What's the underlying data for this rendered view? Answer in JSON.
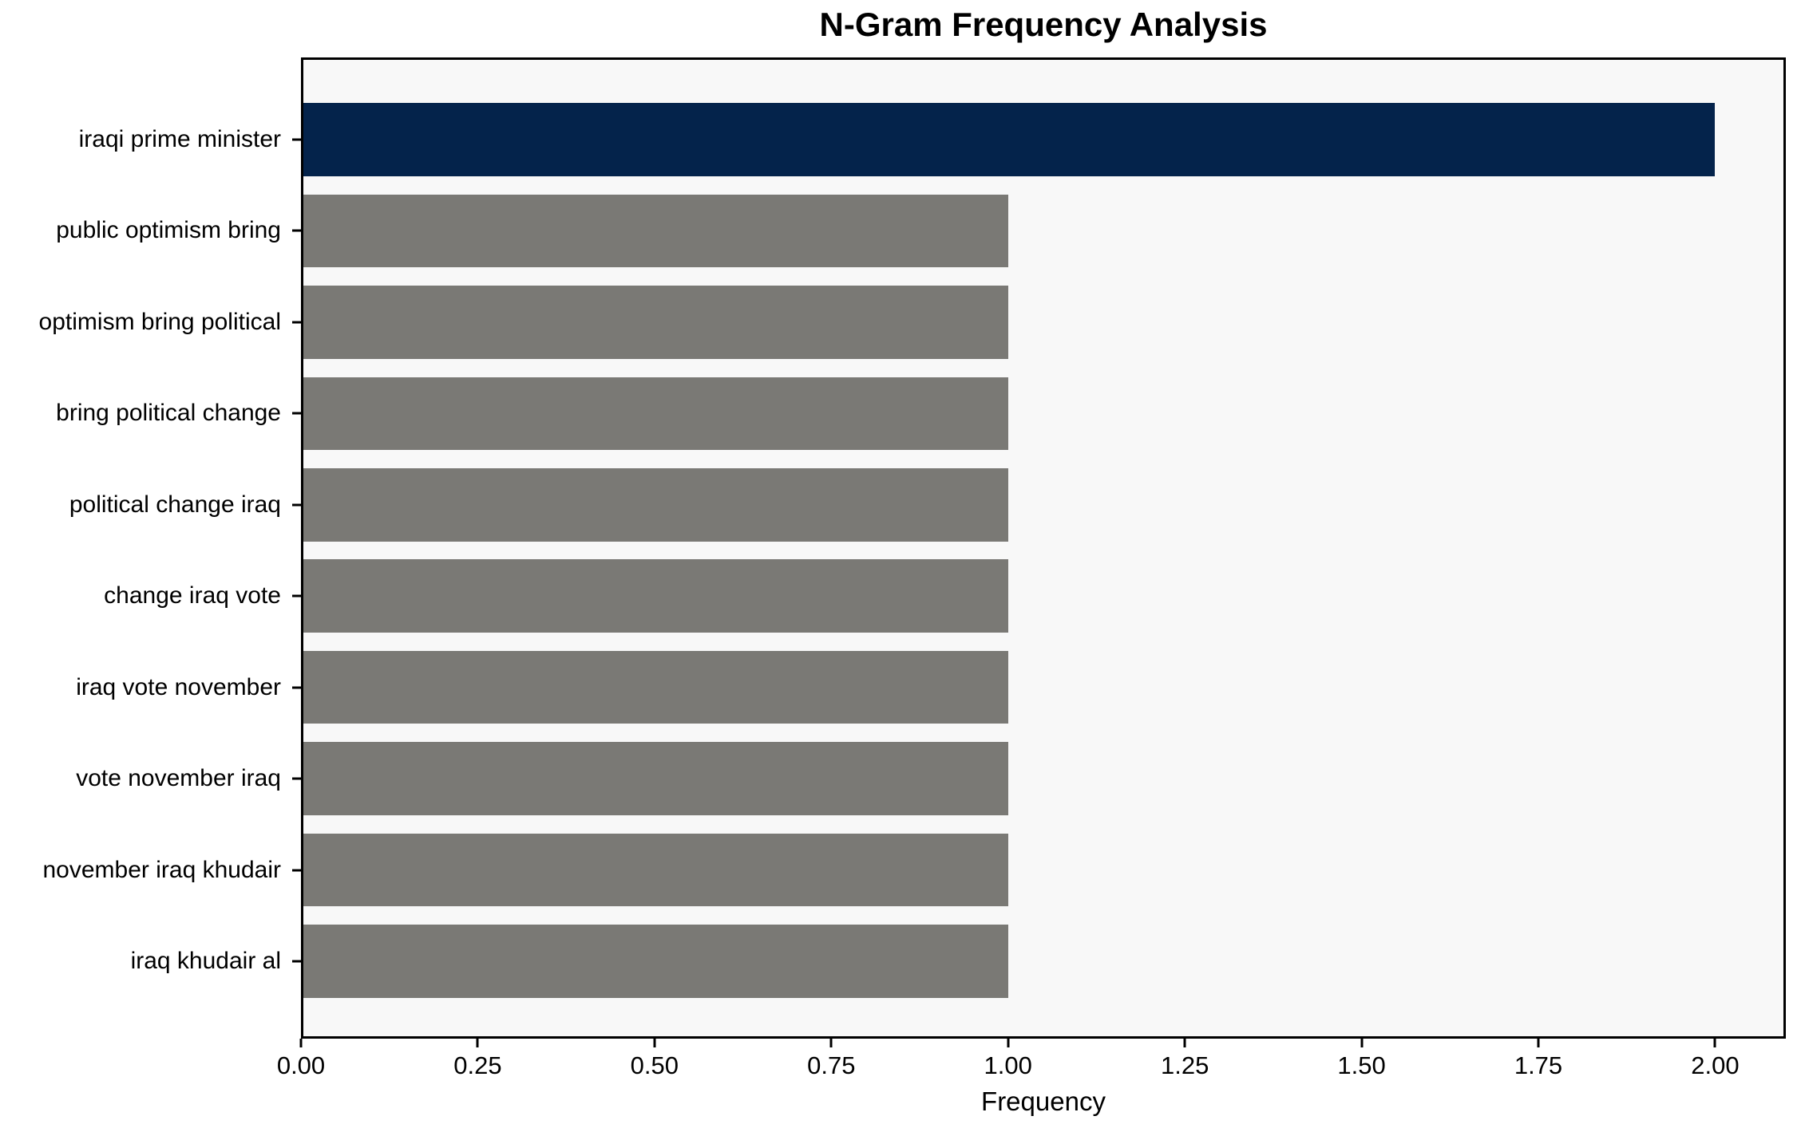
{
  "chart_data": {
    "type": "bar",
    "orientation": "horizontal",
    "title": "N-Gram Frequency Analysis",
    "xlabel": "Frequency",
    "ylabel": "",
    "categories": [
      "iraqi prime minister",
      "public optimism bring",
      "optimism bring political",
      "bring political change",
      "political change iraq",
      "change iraq vote",
      "iraq vote november",
      "vote november iraq",
      "november iraq khudair",
      "iraq khudair al"
    ],
    "values": [
      2,
      1,
      1,
      1,
      1,
      1,
      1,
      1,
      1,
      1
    ],
    "bar_colors": [
      "#04234b",
      "#7a7975",
      "#7a7975",
      "#7a7975",
      "#7a7975",
      "#7a7975",
      "#7a7975",
      "#7a7975",
      "#7a7975",
      "#7a7975"
    ],
    "xlim": [
      0,
      2.1
    ],
    "xticks": [
      0,
      0.25,
      0.5,
      0.75,
      1.0,
      1.25,
      1.5,
      1.75,
      2.0
    ],
    "xtick_labels": [
      "0.00",
      "0.25",
      "0.50",
      "0.75",
      "1.00",
      "1.25",
      "1.50",
      "1.75",
      "2.00"
    ],
    "grid": false,
    "legend": false,
    "colors": {
      "highlight_bar": "#04234b",
      "default_bar": "#7a7975",
      "plot_background": "#f8f8f8",
      "figure_background": "#ffffff",
      "axis_frame": "#000000",
      "text": "#000000"
    }
  }
}
